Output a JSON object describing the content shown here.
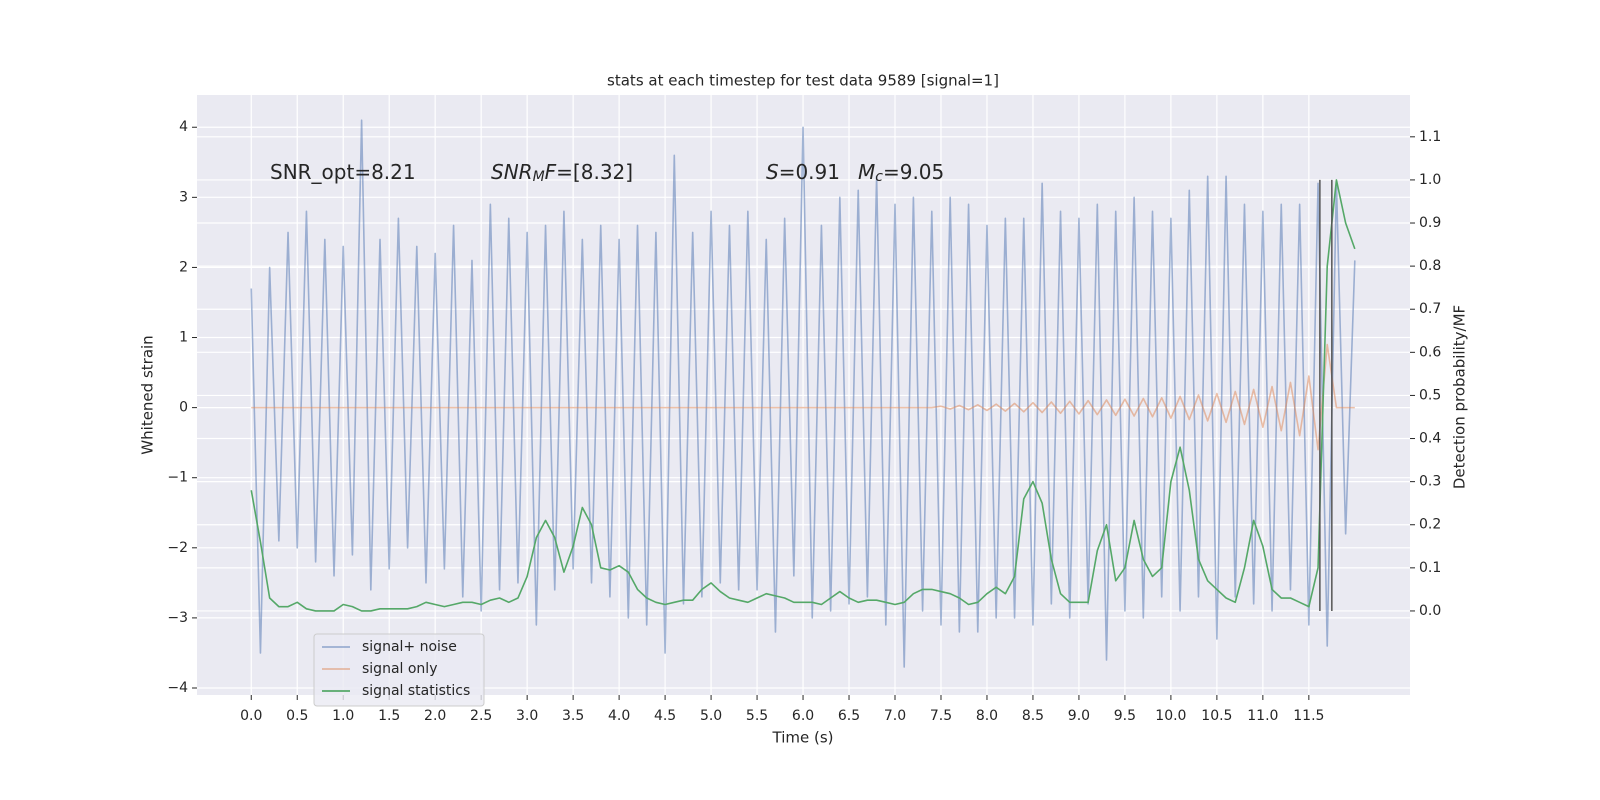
{
  "chart_data": {
    "type": "line",
    "title": "stats at each timestep for test data 9589 [signal=1]",
    "xlabel": "Time (s)",
    "ylabel": "Whitened strain",
    "y2label": "Detection probability/MF",
    "annotations": [
      {
        "segments": [
          {
            "text": "SNR_opt=8.21"
          }
        ]
      },
      {
        "segments": [
          {
            "text": "SNR",
            "italic": true
          },
          {
            "text": "M",
            "italic": true,
            "sub": true
          },
          {
            "text": "F",
            "italic": true
          },
          {
            "text": "=[8.32]"
          }
        ]
      },
      {
        "segments": [
          {
            "text": "S",
            "italic": true
          },
          {
            "text": "=0.91"
          }
        ]
      },
      {
        "segments": [
          {
            "text": "M",
            "italic": true
          },
          {
            "text": "c",
            "italic": true,
            "sub": true
          },
          {
            "text": "=9.05"
          }
        ]
      }
    ],
    "x": [
      0.0,
      0.1,
      0.2,
      0.3,
      0.4,
      0.5,
      0.6,
      0.7,
      0.8,
      0.9,
      1.0,
      1.1,
      1.2,
      1.3,
      1.4,
      1.5,
      1.6,
      1.7,
      1.8,
      1.9,
      2.0,
      2.1,
      2.2,
      2.3,
      2.4,
      2.5,
      2.6,
      2.7,
      2.8,
      2.9,
      3.0,
      3.1,
      3.2,
      3.3,
      3.4,
      3.5,
      3.6,
      3.7,
      3.8,
      3.9,
      4.0,
      4.1,
      4.2,
      4.3,
      4.4,
      4.5,
      4.6,
      4.7,
      4.8,
      4.9,
      5.0,
      5.1,
      5.2,
      5.3,
      5.4,
      5.5,
      5.6,
      5.7,
      5.8,
      5.9,
      6.0,
      6.1,
      6.2,
      6.3,
      6.4,
      6.5,
      6.6,
      6.7,
      6.8,
      6.9,
      7.0,
      7.1,
      7.2,
      7.3,
      7.4,
      7.5,
      7.6,
      7.7,
      7.8,
      7.9,
      8.0,
      8.1,
      8.2,
      8.3,
      8.4,
      8.5,
      8.6,
      8.7,
      8.8,
      8.9,
      9.0,
      9.1,
      9.2,
      9.3,
      9.4,
      9.5,
      9.6,
      9.7,
      9.8,
      9.9,
      10.0,
      10.1,
      10.2,
      10.3,
      10.4,
      10.5,
      10.6,
      10.7,
      10.8,
      10.9,
      11.0,
      11.1,
      11.2,
      11.3,
      11.4,
      11.5,
      11.6,
      11.7,
      11.8,
      11.9,
      12.0
    ],
    "series": [
      {
        "name": "signal+ noise",
        "color": "#4c72b0",
        "opacity": 0.5,
        "values": [
          1.7,
          -3.5,
          2.0,
          -1.9,
          2.5,
          -2.0,
          2.8,
          -2.2,
          2.4,
          -2.4,
          2.3,
          -2.1,
          4.1,
          -2.6,
          2.4,
          -2.3,
          2.7,
          -2.0,
          2.3,
          -2.5,
          2.2,
          -2.3,
          2.6,
          -2.7,
          2.1,
          -2.9,
          2.9,
          -2.6,
          2.7,
          -2.5,
          2.5,
          -3.1,
          2.6,
          -2.6,
          2.8,
          -2.3,
          2.4,
          -2.5,
          2.6,
          -2.7,
          2.4,
          -3.0,
          2.6,
          -3.1,
          2.5,
          -3.5,
          3.6,
          -2.8,
          2.5,
          -2.7,
          2.8,
          -2.5,
          2.6,
          -2.6,
          2.8,
          -2.6,
          2.4,
          -3.2,
          2.7,
          -2.4,
          4.0,
          -3.0,
          2.6,
          -2.9,
          3.0,
          -2.8,
          3.1,
          -2.7,
          3.3,
          -3.1,
          2.9,
          -3.7,
          3.0,
          -2.9,
          2.8,
          -3.1,
          3.0,
          -3.2,
          2.9,
          -3.2,
          2.6,
          -3.0,
          2.7,
          -3.0,
          2.7,
          -3.1,
          3.2,
          -2.8,
          2.8,
          -3.0,
          2.7,
          -2.8,
          2.9,
          -3.6,
          2.8,
          -2.9,
          3.0,
          -3.0,
          2.8,
          -2.7,
          2.7,
          -2.9,
          3.1,
          -2.7,
          3.3,
          -3.3,
          3.3,
          -2.7,
          2.9,
          -2.8,
          2.8,
          -2.9,
          2.9,
          -2.6,
          2.9,
          -3.1,
          3.2,
          -3.4,
          3.2,
          -1.8,
          2.1
        ]
      },
      {
        "name": "signal only",
        "color": "#dd8452",
        "opacity": 0.5,
        "values": [
          0,
          0,
          0,
          0,
          0,
          0,
          0,
          0,
          0,
          0,
          0,
          0,
          0,
          0,
          0,
          0,
          0,
          0,
          0,
          0,
          0,
          0,
          0,
          0,
          0,
          0,
          0,
          0,
          0,
          0,
          0,
          0,
          0,
          0,
          0,
          0,
          0,
          0,
          0,
          0,
          0,
          0,
          0,
          0,
          0,
          0,
          0,
          0,
          0,
          0,
          0,
          0,
          0,
          0,
          0,
          0,
          0,
          0,
          0,
          0,
          0,
          0,
          0,
          0,
          0,
          0,
          0,
          0,
          0,
          0,
          0,
          0,
          0,
          0,
          0,
          0.02,
          -0.02,
          0.03,
          -0.03,
          0.04,
          -0.04,
          0.05,
          -0.05,
          0.06,
          -0.06,
          0.07,
          -0.07,
          0.08,
          -0.08,
          0.09,
          -0.09,
          0.1,
          -0.1,
          0.11,
          -0.11,
          0.12,
          -0.12,
          0.13,
          -0.13,
          0.14,
          -0.15,
          0.16,
          -0.17,
          0.18,
          -0.19,
          0.2,
          -0.21,
          0.23,
          -0.24,
          0.26,
          -0.28,
          0.3,
          -0.33,
          0.36,
          -0.4,
          0.45,
          -0.6,
          0.9,
          0,
          0,
          0
        ]
      },
      {
        "name": "signal statistics",
        "color": "#55a868",
        "opacity": 1,
        "axis": "y2",
        "values": [
          0.28,
          0.16,
          0.03,
          0.01,
          0.01,
          0.02,
          0.005,
          0.0,
          0.0,
          0.0,
          0.015,
          0.01,
          0.0,
          0.0,
          0.005,
          0.005,
          0.005,
          0.005,
          0.01,
          0.02,
          0.015,
          0.01,
          0.015,
          0.02,
          0.02,
          0.015,
          0.025,
          0.03,
          0.02,
          0.03,
          0.08,
          0.17,
          0.21,
          0.17,
          0.09,
          0.15,
          0.24,
          0.2,
          0.1,
          0.095,
          0.105,
          0.09,
          0.05,
          0.03,
          0.02,
          0.015,
          0.02,
          0.025,
          0.025,
          0.05,
          0.065,
          0.045,
          0.03,
          0.025,
          0.02,
          0.03,
          0.04,
          0.035,
          0.03,
          0.02,
          0.02,
          0.02,
          0.015,
          0.03,
          0.045,
          0.03,
          0.02,
          0.025,
          0.025,
          0.02,
          0.015,
          0.02,
          0.04,
          0.05,
          0.05,
          0.045,
          0.04,
          0.03,
          0.015,
          0.02,
          0.04,
          0.055,
          0.04,
          0.08,
          0.26,
          0.3,
          0.25,
          0.12,
          0.04,
          0.02,
          0.02,
          0.02,
          0.14,
          0.2,
          0.07,
          0.1,
          0.21,
          0.12,
          0.08,
          0.1,
          0.3,
          0.38,
          0.28,
          0.12,
          0.07,
          0.05,
          0.03,
          0.02,
          0.1,
          0.21,
          0.15,
          0.05,
          0.03,
          0.03,
          0.02,
          0.01,
          0.1,
          0.8,
          1.0,
          0.9,
          0.84
        ]
      }
    ],
    "vlines": [
      {
        "x": 11.62,
        "y2": [
          0,
          1.0
        ]
      },
      {
        "x": 11.75,
        "y2": [
          0,
          1.0
        ]
      }
    ],
    "vline_color": "#555555",
    "xlim": [
      -0.59,
      12.6
    ],
    "ylim": [
      -4.1,
      4.46
    ],
    "y2lim": [
      -0.195,
      1.197
    ],
    "xticks": [
      {
        "value": 0,
        "label": "0.0"
      },
      0.5,
      {
        "value": 1,
        "label": "1.0"
      },
      1.5,
      {
        "value": 2,
        "label": "2.0"
      },
      2.5,
      {
        "value": 3,
        "label": "3.0"
      },
      3.5,
      {
        "value": 4,
        "label": "4.0"
      },
      4.5,
      {
        "value": 5,
        "label": "5.0"
      },
      5.5,
      {
        "value": 6,
        "label": "6.0"
      },
      6.5,
      {
        "value": 7,
        "label": "7.0"
      },
      7.5,
      {
        "value": 8,
        "label": "8.0"
      },
      8.5,
      {
        "value": 9,
        "label": "9.0"
      },
      9.5,
      {
        "value": 10,
        "label": "10.0"
      },
      10.5,
      {
        "value": 11,
        "label": "11.0"
      },
      11.5
    ],
    "yticks": [
      {
        "value": -4,
        "label": "−4"
      },
      {
        "value": -3,
        "label": "−3"
      },
      {
        "value": -2,
        "label": "−2"
      },
      {
        "value": -1,
        "label": "−1"
      },
      0,
      1,
      2,
      3,
      4
    ],
    "y2ticks": [
      {
        "value": 0,
        "label": "0.0"
      },
      0.1,
      0.2,
      0.3,
      0.4,
      0.5,
      0.6,
      0.7,
      0.8,
      0.9,
      {
        "value": 1,
        "label": "1.0"
      },
      1.1
    ],
    "grid": true,
    "legend": "lower left",
    "background": "#eaeaf2"
  }
}
